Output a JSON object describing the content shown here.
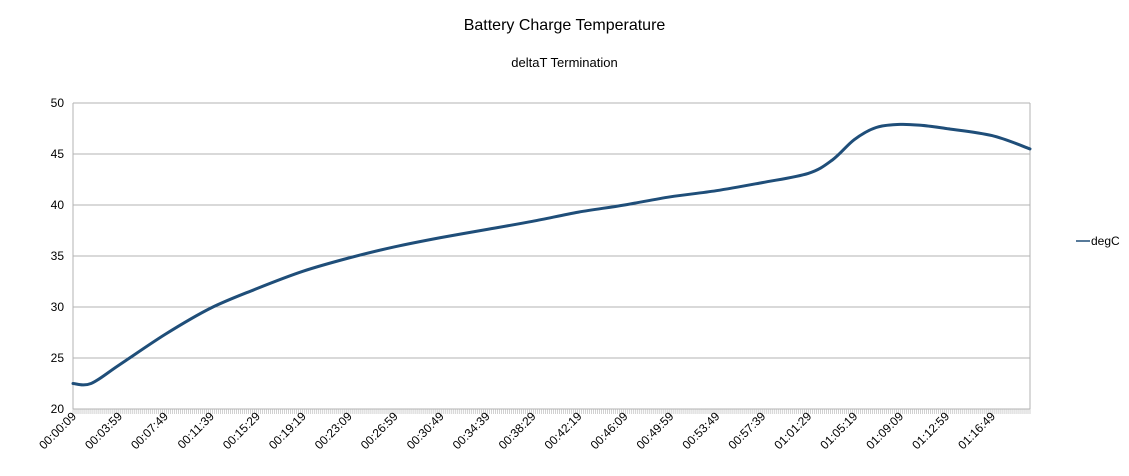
{
  "chart_data": {
    "type": "line",
    "title": "Battery Charge Temperature",
    "subtitle": "deltaT Termination",
    "xlabel": "",
    "ylabel": "",
    "ylim": [
      20,
      50
    ],
    "yticks": [
      "20",
      "25",
      "30",
      "35",
      "40",
      "45",
      "50"
    ],
    "x_tick_labels": [
      "00:00:09",
      "00:03:59",
      "00:07:49",
      "00:11:39",
      "00:15:29",
      "00:19:19",
      "00:23:09",
      "00:26:59",
      "00:30:49",
      "00:34:39",
      "00:38:29",
      "00:42:19",
      "00:46:09",
      "00:49:59",
      "00:53:49",
      "00:57:39",
      "01:01:29",
      "01:05:19",
      "01:09:09",
      "01:12:59",
      "01:16:49"
    ],
    "grid": true,
    "legend_position": "right",
    "line_color": "#1f4e79",
    "series": [
      {
        "name": "degC",
        "x": [
          "00:00:09",
          "00:01:39",
          "00:03:59",
          "00:07:49",
          "00:11:39",
          "00:15:29",
          "00:19:19",
          "00:23:09",
          "00:26:59",
          "00:30:49",
          "00:34:39",
          "00:38:29",
          "00:42:19",
          "00:46:09",
          "00:49:59",
          "00:53:49",
          "00:57:39",
          "01:01:29",
          "01:03:29",
          "01:05:19",
          "01:07:09",
          "01:09:09",
          "01:10:59",
          "01:12:59",
          "01:16:49",
          "01:19:59"
        ],
        "values": [
          22.5,
          22.5,
          24.3,
          27.3,
          29.9,
          31.8,
          33.5,
          34.8,
          35.9,
          36.8,
          37.6,
          38.4,
          39.3,
          40.0,
          40.8,
          41.4,
          42.2,
          43.1,
          44.4,
          46.4,
          47.6,
          47.9,
          47.8,
          47.5,
          46.8,
          45.5
        ]
      }
    ]
  }
}
